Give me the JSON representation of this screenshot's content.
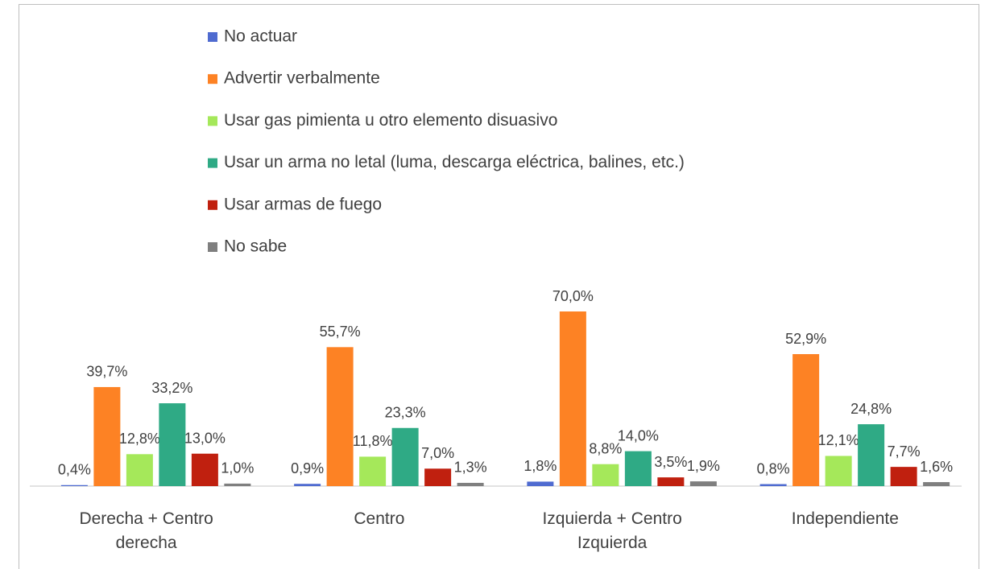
{
  "chart_data": {
    "type": "bar",
    "categories": [
      "Derecha + Centro derecha",
      "Centro",
      "Izquierda + Centro Izquierda",
      "Independiente"
    ],
    "series": [
      {
        "name": "No actuar",
        "color": "#4f6bd0",
        "values": [
          0.4,
          0.9,
          1.8,
          0.8
        ],
        "value_labels": [
          "0,4%",
          "0,9%",
          "1,8%",
          "0,8%"
        ]
      },
      {
        "name": "Advertir verbalmente",
        "color": "#fd8224",
        "values": [
          39.7,
          55.7,
          70.0,
          52.9
        ],
        "value_labels": [
          "39,7%",
          "55,7%",
          "70,0%",
          "52,9%"
        ]
      },
      {
        "name": "Usar gas pimienta u otro elemento disuasivo",
        "color": "#a5e85a",
        "values": [
          12.8,
          11.8,
          8.8,
          12.1
        ],
        "value_labels": [
          "12,8%",
          "11,8%",
          "8,8%",
          "12,1%"
        ]
      },
      {
        "name": "Usar un arma no letal (luma, descarga eléctrica, balines, etc.)",
        "color": "#2faa85",
        "values": [
          33.2,
          23.3,
          14.0,
          24.8
        ],
        "value_labels": [
          "33,2%",
          "23,3%",
          "14,0%",
          "24,8%"
        ]
      },
      {
        "name": "Usar armas de fuego",
        "color": "#c0200f",
        "values": [
          13.0,
          7.0,
          3.5,
          7.7
        ],
        "value_labels": [
          "13,0%",
          "7,0%",
          "3,5%",
          "7,7%"
        ]
      },
      {
        "name": "No sabe",
        "color": "#7f7f7f",
        "values": [
          1.0,
          1.3,
          1.9,
          1.6
        ],
        "value_labels": [
          "1,0%",
          "1,3%",
          "1,9%",
          "1,6%"
        ]
      }
    ],
    "ylim": [
      0,
      80
    ],
    "legend": "top"
  }
}
